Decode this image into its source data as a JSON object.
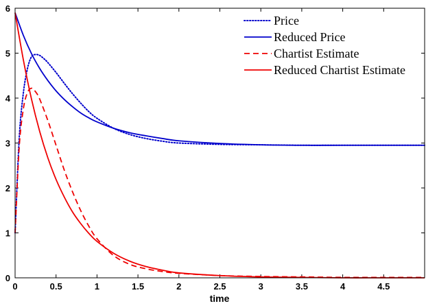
{
  "chart_data": {
    "type": "line",
    "title": "",
    "xlabel": "time",
    "ylabel": "",
    "xlim": [
      0,
      5
    ],
    "ylim": [
      0,
      6
    ],
    "xticks": [
      "0",
      "0.5",
      "1",
      "1.5",
      "2",
      "2.5",
      "3",
      "3.5",
      "4",
      "4.5"
    ],
    "xtick_values": [
      0,
      0.5,
      1,
      1.5,
      2,
      2.5,
      3,
      3.5,
      4,
      4.5
    ],
    "yticks": [
      "0",
      "1",
      "2",
      "3",
      "4",
      "5",
      "6"
    ],
    "ytick_values": [
      0,
      1,
      2,
      3,
      4,
      5,
      6
    ],
    "grid": false,
    "legend_position": "top-right",
    "series": [
      {
        "name": "Price",
        "color": "#0000cc",
        "style": "dotted",
        "x": [
          0,
          0.05,
          0.1,
          0.15,
          0.2,
          0.25,
          0.3,
          0.35,
          0.4,
          0.5,
          0.6,
          0.7,
          0.8,
          0.9,
          1.0,
          1.2,
          1.4,
          1.6,
          1.8,
          2.0,
          2.5,
          3.0,
          3.5,
          4.0,
          4.5,
          5.0
        ],
        "y": [
          1.0,
          3.1,
          4.1,
          4.65,
          4.92,
          4.97,
          4.95,
          4.88,
          4.79,
          4.57,
          4.33,
          4.1,
          3.89,
          3.7,
          3.55,
          3.33,
          3.19,
          3.1,
          3.04,
          3.0,
          2.97,
          2.96,
          2.95,
          2.95,
          2.95,
          2.95
        ]
      },
      {
        "name": "Reduced Price",
        "color": "#0000cc",
        "style": "solid",
        "x": [
          0,
          0.1,
          0.2,
          0.3,
          0.4,
          0.5,
          0.6,
          0.7,
          0.8,
          0.9,
          1.0,
          1.2,
          1.4,
          1.6,
          1.8,
          2.0,
          2.5,
          3.0,
          3.5,
          4.0,
          4.5,
          5.0
        ],
        "y": [
          5.9,
          5.4,
          4.99,
          4.66,
          4.39,
          4.16,
          3.97,
          3.81,
          3.67,
          3.56,
          3.47,
          3.33,
          3.23,
          3.16,
          3.1,
          3.05,
          2.99,
          2.96,
          2.95,
          2.95,
          2.95,
          2.95
        ]
      },
      {
        "name": "Chartist Estimate",
        "color": "#ee0000",
        "style": "dashed",
        "x": [
          0,
          0.05,
          0.1,
          0.15,
          0.2,
          0.25,
          0.3,
          0.4,
          0.5,
          0.6,
          0.7,
          0.8,
          0.9,
          1.0,
          1.2,
          1.4,
          1.6,
          1.8,
          2.0,
          2.5,
          3.0,
          3.5,
          4.0,
          4.5,
          5.0
        ],
        "y": [
          1.0,
          2.9,
          3.75,
          4.12,
          4.22,
          4.14,
          3.98,
          3.5,
          2.95,
          2.4,
          1.92,
          1.5,
          1.15,
          0.87,
          0.5,
          0.3,
          0.2,
          0.14,
          0.1,
          0.05,
          0.03,
          0.02,
          0.01,
          0.01,
          0.01
        ]
      },
      {
        "name": "Reduced Chartist Estimate",
        "color": "#ee0000",
        "style": "solid",
        "x": [
          0,
          0.1,
          0.2,
          0.3,
          0.4,
          0.5,
          0.6,
          0.7,
          0.8,
          0.9,
          1.0,
          1.2,
          1.4,
          1.6,
          1.8,
          2.0,
          2.5,
          3.0,
          3.5,
          4.0,
          4.5,
          5.0
        ],
        "y": [
          5.9,
          4.86,
          3.98,
          3.26,
          2.67,
          2.19,
          1.8,
          1.47,
          1.21,
          0.99,
          0.81,
          0.55,
          0.37,
          0.25,
          0.17,
          0.11,
          0.05,
          0.02,
          0.01,
          0.0,
          0.0,
          0.0
        ]
      }
    ]
  }
}
